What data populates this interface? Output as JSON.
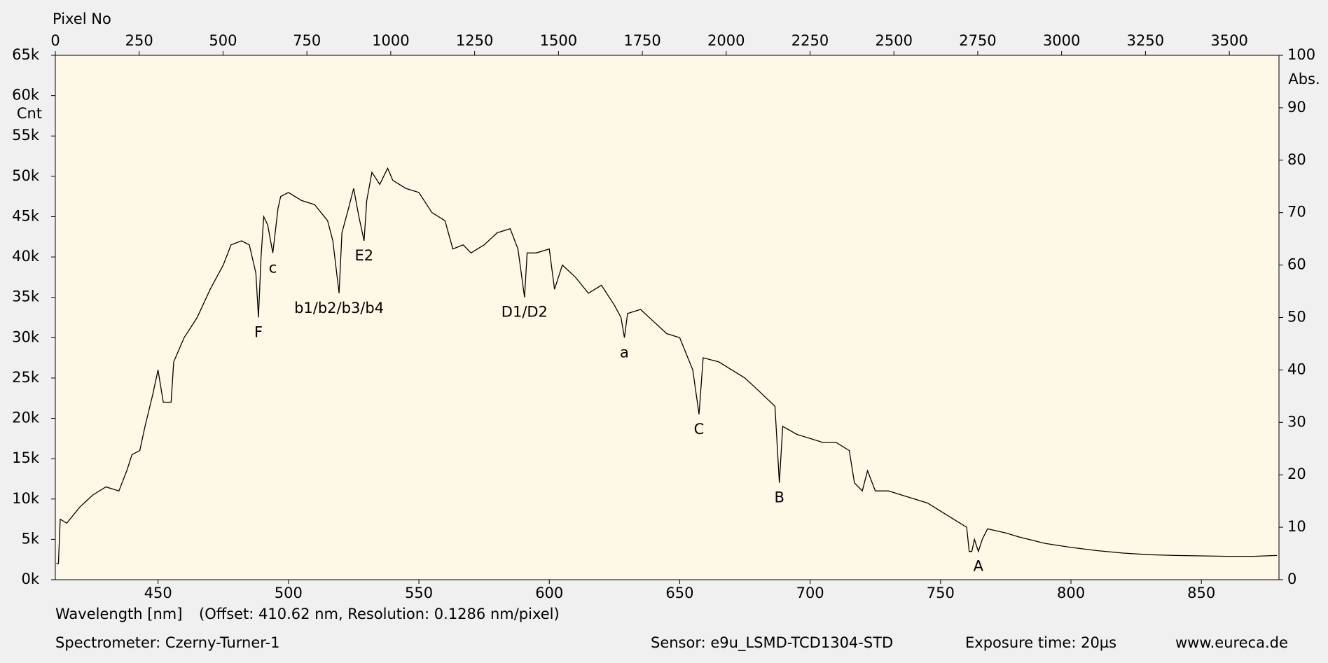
{
  "chart_data": {
    "type": "line",
    "x_label": "Wavelength [nm]",
    "x_note": "(Offset: 410.62 nm, Resolution: 0.1286 nm/pixel)",
    "x2_label": "Pixel No",
    "y_label": "Cnt",
    "y2_label": "Abs.",
    "footer": {
      "spectrometer": "Spectrometer: Czerny-Turner-1",
      "sensor": "Sensor: e9u_LSMD-TCD1304-STD",
      "exposure": "Exposure time: 20µs",
      "site": "www.eureca.de"
    },
    "xlim": [
      410.62,
      879.75
    ],
    "xticks": [
      450,
      500,
      550,
      600,
      650,
      700,
      750,
      800,
      850
    ],
    "x2lim": [
      0,
      3648
    ],
    "x2ticks": [
      0,
      250,
      500,
      750,
      1000,
      1250,
      1500,
      1750,
      2000,
      2250,
      2500,
      2750,
      3000,
      3250,
      3500
    ],
    "ylim": [
      0,
      65000
    ],
    "yticks": [
      {
        "value": 0,
        "label": "0k"
      },
      {
        "value": 5000,
        "label": "5k"
      },
      {
        "value": 10000,
        "label": "10k"
      },
      {
        "value": 15000,
        "label": "15k"
      },
      {
        "value": 20000,
        "label": "20k"
      },
      {
        "value": 25000,
        "label": "25k"
      },
      {
        "value": 30000,
        "label": "30k"
      },
      {
        "value": 35000,
        "label": "35k"
      },
      {
        "value": 40000,
        "label": "40k"
      },
      {
        "value": 45000,
        "label": "45k"
      },
      {
        "value": 50000,
        "label": "50k"
      },
      {
        "value": 55000,
        "label": "55k"
      },
      {
        "value": 60000,
        "label": "60k"
      },
      {
        "value": 65000,
        "label": "65k"
      }
    ],
    "y2lim": [
      0,
      100
    ],
    "y2ticks": [
      0,
      10,
      20,
      30,
      40,
      50,
      60,
      70,
      80,
      90,
      100
    ],
    "color": "#000000",
    "x": [
      411,
      411.8,
      412.5,
      415,
      420,
      425,
      430,
      435,
      438,
      440,
      443,
      445,
      448,
      450,
      452,
      455,
      456,
      460,
      465,
      470,
      475,
      478,
      482,
      485,
      487.5,
      488.5,
      489.5,
      490.5,
      492,
      494,
      496,
      497,
      500,
      505,
      510,
      515,
      517,
      518.5,
      519.4,
      520.5,
      523,
      525,
      527,
      529,
      530,
      532,
      535,
      538,
      540,
      545,
      550,
      555,
      560,
      563,
      567,
      570,
      575,
      580,
      585,
      588,
      590.5,
      591.5,
      595,
      600,
      602,
      605,
      610,
      615,
      620,
      625,
      627.5,
      628.8,
      630,
      635,
      640,
      645,
      650,
      655,
      657.4,
      659,
      665,
      670,
      675,
      680,
      686.5,
      688.2,
      689.5,
      695,
      700,
      705,
      710,
      715,
      717,
      720,
      722,
      725,
      730,
      735,
      740,
      745,
      750,
      755,
      760,
      761,
      762,
      763,
      764.5,
      766,
      768,
      775,
      780,
      790,
      800,
      810,
      820,
      830,
      840,
      850,
      860,
      870,
      879
    ],
    "values": [
      2000,
      2000,
      7500,
      7000,
      9000,
      10500,
      11500,
      11000,
      13500,
      15500,
      16000,
      19000,
      23000,
      26000,
      22000,
      22000,
      27000,
      30000,
      32500,
      36000,
      39000,
      41500,
      42000,
      41500,
      38000,
      32500,
      40000,
      45000,
      44000,
      40500,
      46000,
      47500,
      48000,
      47000,
      46500,
      44500,
      42000,
      38000,
      35500,
      43000,
      46000,
      48500,
      45000,
      42000,
      47000,
      50500,
      49000,
      51000,
      49500,
      48500,
      48000,
      45500,
      44500,
      41000,
      41500,
      40500,
      41500,
      43000,
      43500,
      41000,
      35000,
      40500,
      40500,
      41000,
      36000,
      39000,
      37500,
      35500,
      36500,
      34000,
      32500,
      30000,
      33000,
      33500,
      32000,
      30500,
      30000,
      26000,
      20500,
      27500,
      27000,
      26000,
      25000,
      23500,
      21500,
      12000,
      19000,
      18000,
      17500,
      17000,
      17000,
      16000,
      12000,
      11000,
      13500,
      11000,
      11000,
      10500,
      10000,
      9500,
      8500,
      7500,
      6500,
      3500,
      3500,
      5000,
      3500,
      5000,
      6300,
      5800,
      5300,
      4500,
      4000,
      3600,
      3300,
      3100,
      3000,
      2950,
      2900,
      2900,
      3000
    ],
    "annotations": [
      {
        "text": "F",
        "x": 488.5
      },
      {
        "text": "c",
        "x": 494
      },
      {
        "text": "b1/b2/b3/b4",
        "x": 519.4
      },
      {
        "text": "E2",
        "x": 529
      },
      {
        "text": "D1/D2",
        "x": 590.5
      },
      {
        "text": "a",
        "x": 628.8
      },
      {
        "text": "C",
        "x": 657.4
      },
      {
        "text": "B",
        "x": 688.2
      },
      {
        "text": "A",
        "x": 764.5
      }
    ]
  }
}
